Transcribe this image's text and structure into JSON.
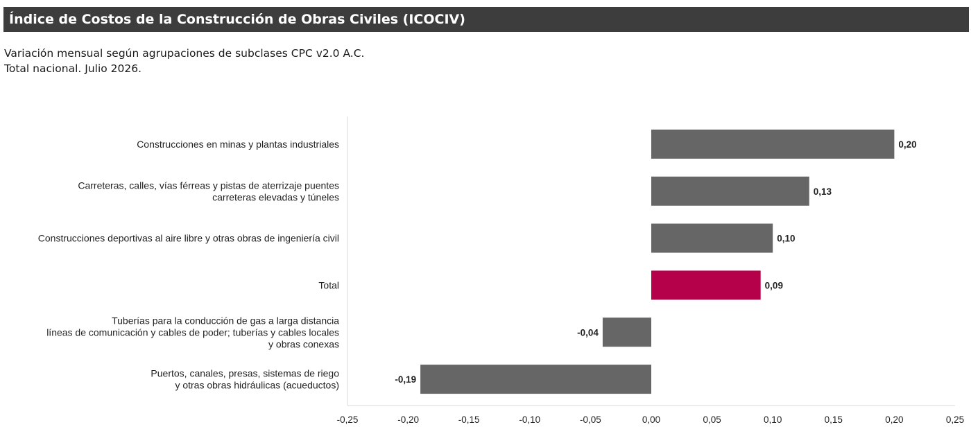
{
  "header": {
    "title": "Índice de Costos de la Construcción de Obras Civiles (ICOCIV)",
    "bar_color": "#3d3d3d"
  },
  "subtitle": {
    "line1": "Variación mensual según agrupaciones de subclases CPC v2.0 A.C.",
    "line2": "Total nacional. Julio 2026."
  },
  "chart_data": {
    "type": "bar",
    "orientation": "horizontal",
    "categories": [
      [
        "Construcciones en minas y plantas industriales"
      ],
      [
        "Carreteras, calles, vías férreas y pistas de aterrizaje puentes",
        "carreteras elevadas y túneles"
      ],
      [
        "Construcciones deportivas al aire libre y otras obras de ingeniería civil"
      ],
      [
        "Total"
      ],
      [
        "Tuberías para la conducción de gas a larga distancia",
        "líneas de comunicación y cables de poder; tuberías y cables locales",
        "y obras conexas"
      ],
      [
        "Puertos, canales, presas, sistemas de riego",
        "y otras obras hidráulicas (acueductos)"
      ]
    ],
    "values": [
      0.2,
      0.13,
      0.1,
      0.09,
      -0.04,
      -0.19
    ],
    "value_labels": [
      "0,20",
      "0,13",
      "0,10",
      "0,09",
      "-0,04",
      "-0,19"
    ],
    "highlight_index": 3,
    "xlim": [
      -0.25,
      0.25
    ],
    "x_ticks": [
      -0.25,
      -0.2,
      -0.15,
      -0.1,
      -0.05,
      0.0,
      0.05,
      0.1,
      0.15,
      0.2,
      0.25
    ],
    "x_tick_labels": [
      "-0,25",
      "-0,20",
      "-0,15",
      "-0,10",
      "-0,05",
      "0,00",
      "0,05",
      "0,10",
      "0,15",
      "0,20",
      "0,25"
    ],
    "bar_color": "#666666",
    "highlight_color": "#b5004a",
    "grid": false,
    "legend": "none"
  }
}
